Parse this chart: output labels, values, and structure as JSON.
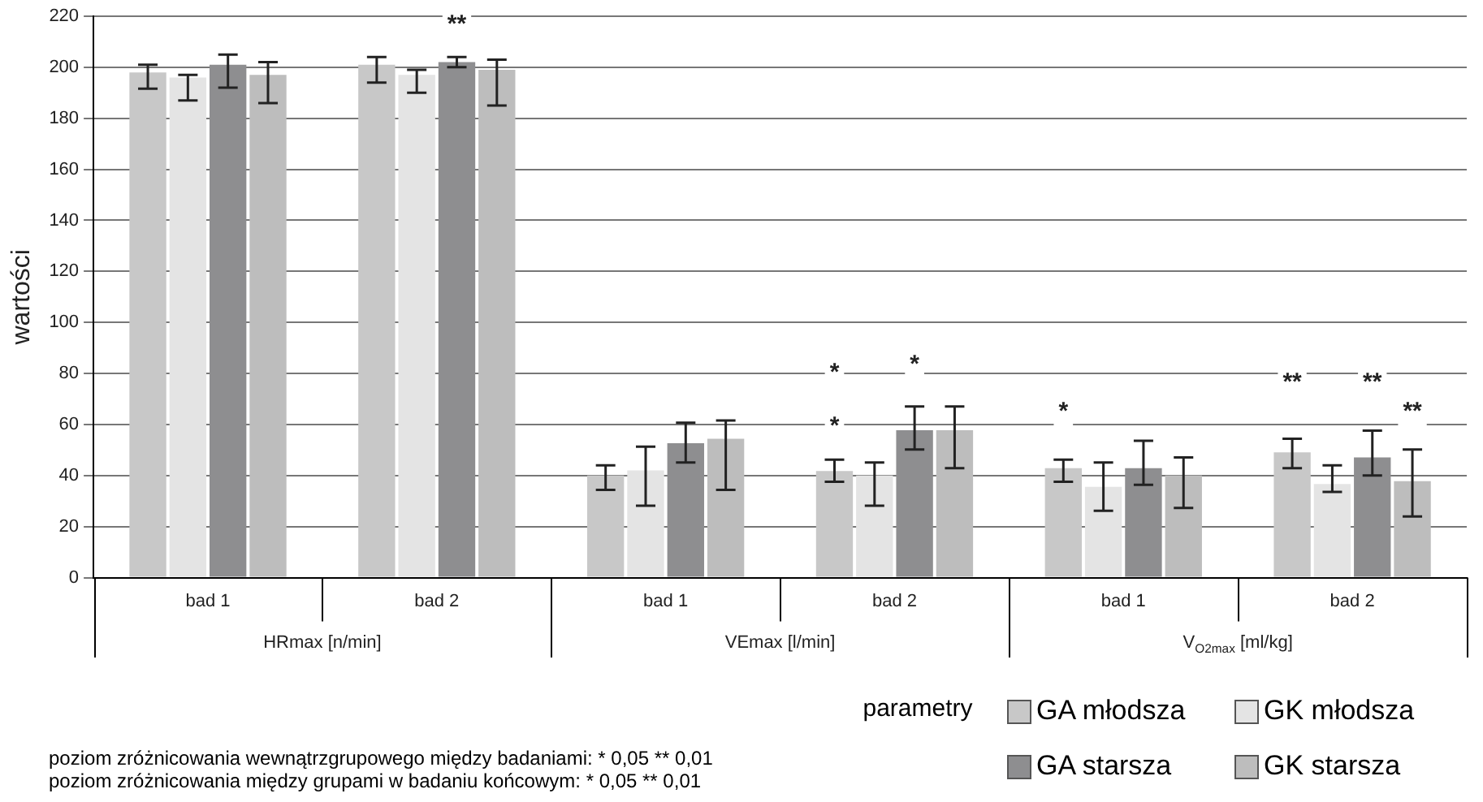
{
  "chart_data": {
    "type": "bar",
    "ylabel": "wartości",
    "xlabel": "parametry",
    "categories": [
      "bad 1",
      "bad 2",
      "bad 1",
      "bad 2",
      "bad 1",
      "bad 2"
    ],
    "series": [
      {
        "name": "GA młodsza",
        "color": "#c8c8c8",
        "values": [
          198,
          201,
          40,
          41.8,
          42.9,
          49.1
        ],
        "errors": [
          [
            191.6,
            201
          ],
          [
            194,
            204
          ],
          [
            34.4,
            44
          ],
          [
            37.6,
            46.2
          ],
          [
            37.6,
            46.2
          ],
          [
            42.9,
            54.4
          ]
        ]
      },
      {
        "name": "GK młodsza",
        "color": "#e4e4e4",
        "values": [
          196,
          197,
          42,
          40,
          35.6,
          36.7
        ],
        "errors": [
          [
            187,
            197
          ],
          [
            190,
            199
          ],
          [
            28.2,
            51.3
          ],
          [
            28.2,
            45.1
          ],
          [
            26.2,
            45.1
          ],
          [
            33.6,
            44
          ]
        ]
      },
      {
        "name": "GA starsza",
        "color": "#8e8e90",
        "values": [
          201,
          202,
          52.7,
          57.8,
          42.9,
          47.1
        ],
        "errors": [
          [
            192,
            205
          ],
          [
            200,
            204
          ],
          [
            45.1,
            60.7
          ],
          [
            50.2,
            67.1
          ],
          [
            36.4,
            53.6
          ],
          [
            40,
            57.6
          ]
        ]
      },
      {
        "name": "GK starsza",
        "color": "#bdbdbd",
        "values": [
          197,
          199,
          54.4,
          57.8,
          40,
          37.8
        ],
        "errors": [
          [
            186,
            202
          ],
          [
            185,
            203
          ],
          [
            34.4,
            61.6
          ],
          [
            42.9,
            67.1
          ],
          [
            27.3,
            47.1
          ],
          [
            24,
            50.2
          ]
        ]
      }
    ],
    "ylim": [
      0,
      220
    ],
    "yticks": [
      0,
      20,
      40,
      60,
      80,
      100,
      120,
      140,
      160,
      180,
      200,
      220
    ],
    "grid": "y",
    "legend": "bottom right",
    "annotations": [
      "HRmax [n/min]",
      "VEmax [l/min]",
      "V$_{O2max}$ [ml/kg]",
      "**",
      "*",
      "*",
      "*",
      "*",
      "**",
      "**",
      "**",
      "poziom zróżnicowania wewnątrzgrupowego między badaniami:  * 0,05  ** 0,01",
      "poziom zróżnicowania między grupami w badaniu końcowym:  * 0,05  ** 0,01"
    ]
  }
}
